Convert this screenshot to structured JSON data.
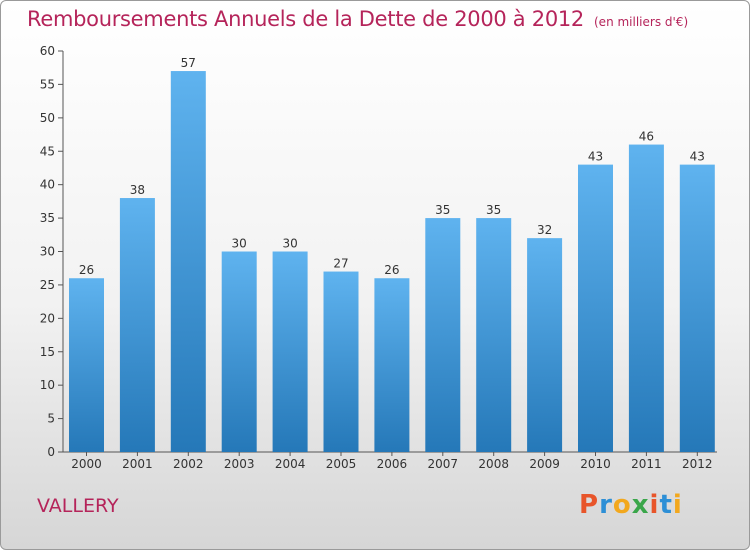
{
  "page": {
    "commune": "VALLERY",
    "logo_text": "Proxiti"
  },
  "colors": {
    "title": "#b5245a",
    "bar_top": "#5fb3ef",
    "bar_bottom": "#2578b8"
  },
  "chart_data": {
    "type": "bar",
    "title": "Remboursements Annuels de la Dette de 2000 à 2012",
    "subtitle": "(en milliers d'€)",
    "categories": [
      "2000",
      "2001",
      "2002",
      "2003",
      "2004",
      "2005",
      "2006",
      "2007",
      "2008",
      "2009",
      "2010",
      "2011",
      "2012"
    ],
    "values": [
      26,
      38,
      57,
      30,
      30,
      27,
      26,
      35,
      35,
      32,
      43,
      46,
      43
    ],
    "ylim": [
      0,
      60
    ],
    "yticks": [
      0,
      5,
      10,
      15,
      20,
      25,
      30,
      35,
      40,
      45,
      50,
      55,
      60
    ],
    "grid": false,
    "data_labels": true
  }
}
